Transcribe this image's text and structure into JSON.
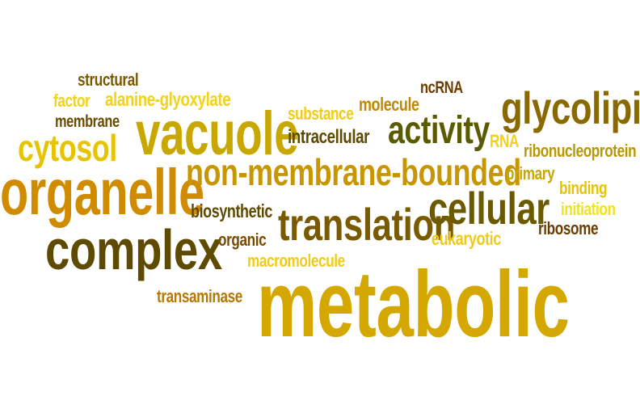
{
  "words": [
    {
      "text": "structural",
      "color": "#7a5a00"
    },
    {
      "text": "factor",
      "color": "#f2d21a"
    },
    {
      "text": "alanine-glyoxylate",
      "color": "#f2d21a"
    },
    {
      "text": "membrane",
      "color": "#6b4d00"
    },
    {
      "text": "cytosol",
      "color": "#e6c400"
    },
    {
      "text": "vacuole",
      "color": "#c8a800"
    },
    {
      "text": "organelle",
      "color": "#d18b00"
    },
    {
      "text": "complex",
      "color": "#5e4a00"
    },
    {
      "text": "substance",
      "color": "#f0cc1a"
    },
    {
      "text": "molecule",
      "color": "#c48800"
    },
    {
      "text": "ncRNA",
      "color": "#6b3b00"
    },
    {
      "text": "intracellular",
      "color": "#5e4a00"
    },
    {
      "text": "activity",
      "color": "#5a5a00"
    },
    {
      "text": "RNA",
      "color": "#f2d21a"
    },
    {
      "text": "glycolipid",
      "color": "#8a6a00"
    },
    {
      "text": "ribonucleoprotein",
      "color": "#b89800"
    },
    {
      "text": "non-membrane-bounded",
      "color": "#c89600"
    },
    {
      "text": "primary",
      "color": "#c8a800"
    },
    {
      "text": "binding",
      "color": "#e6c400"
    },
    {
      "text": "initiation",
      "color": "#f2e21a"
    },
    {
      "text": "biosynthetic",
      "color": "#5e4a00"
    },
    {
      "text": "translation",
      "color": "#7a5a00"
    },
    {
      "text": "cellular",
      "color": "#6b5a00"
    },
    {
      "text": "ribosome",
      "color": "#6b3b00"
    },
    {
      "text": "organic",
      "color": "#7a4a00"
    },
    {
      "text": "eukaryotic",
      "color": "#f0cc1a"
    },
    {
      "text": "macromolecule",
      "color": "#f0cc1a"
    },
    {
      "text": "transaminase",
      "color": "#b87800"
    },
    {
      "text": "metabolic",
      "color": "#d4a800"
    }
  ]
}
